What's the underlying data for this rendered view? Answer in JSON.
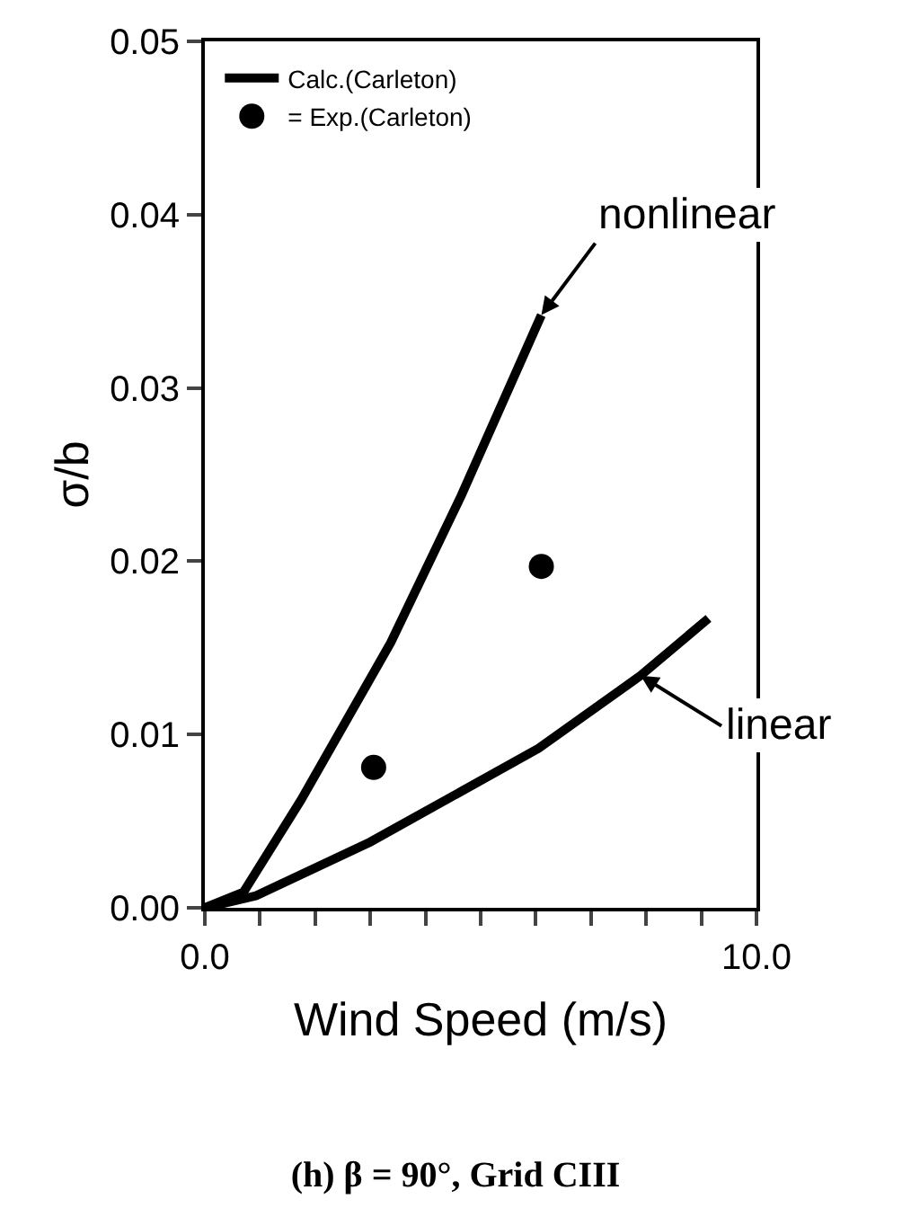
{
  "chart_data": {
    "type": "line",
    "title": "(h) β = 90°, Grid CIII",
    "xlabel": "Wind Speed (m/s)",
    "ylabel": "σ/b",
    "xlim": [
      0,
      10
    ],
    "ylim": [
      0,
      0.05
    ],
    "xticks": [
      {
        "value": 0,
        "label": "0.0"
      },
      {
        "value": 1,
        "label": null
      },
      {
        "value": 2,
        "label": null
      },
      {
        "value": 3,
        "label": null
      },
      {
        "value": 4,
        "label": null
      },
      {
        "value": 5,
        "label": null
      },
      {
        "value": 6,
        "label": null
      },
      {
        "value": 7,
        "label": null
      },
      {
        "value": 8,
        "label": null
      },
      {
        "value": 9,
        "label": null
      },
      {
        "value": 10,
        "label": "10.0"
      }
    ],
    "yticks": [
      {
        "value": 0,
        "label": "0.00"
      },
      {
        "value": 0.01,
        "label": "0.01"
      },
      {
        "value": 0.02,
        "label": "0.02"
      },
      {
        "value": 0.03,
        "label": "0.03"
      },
      {
        "value": 0.04,
        "label": "0.04"
      },
      {
        "value": 0.05,
        "label": "0.05"
      }
    ],
    "legend": "top left",
    "series": [
      {
        "name": "Calc.(Carleton)",
        "color": "#000000",
        "x": [
          0,
          0.7,
          1.74,
          3.37,
          4.65,
          6.1
        ],
        "values": [
          0,
          0.0009,
          0.0062,
          0.0153,
          0.0238,
          0.0342
        ]
      },
      {
        "color": "#000000",
        "x": [
          0,
          0.93,
          3.0,
          6.05,
          7.9,
          9.13
        ],
        "values": [
          0,
          0.0007,
          0.0038,
          0.0092,
          0.0134,
          0.0167
        ]
      },
      {
        "name": "= Exp.(Carleton)",
        "type": "scatter",
        "marker": "circle",
        "color": "#000000",
        "x": [
          3.06,
          6.1
        ],
        "values": [
          0.0081,
          0.0197
        ]
      }
    ],
    "annotations": [
      {
        "text": "nonlinear",
        "x": 6.1,
        "y": 0.0342
      },
      {
        "text": "linear",
        "x": 7.9,
        "y": 0.0134
      }
    ]
  }
}
